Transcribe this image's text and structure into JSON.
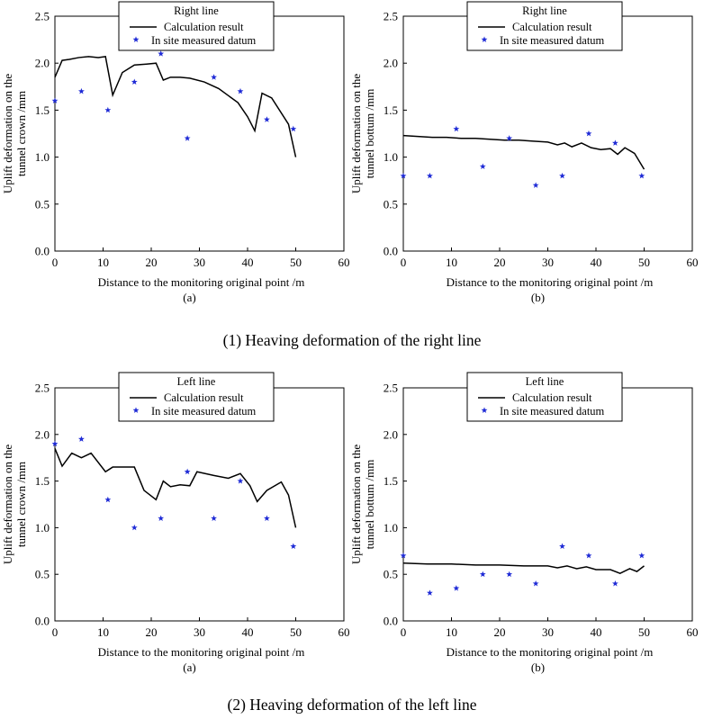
{
  "chart_data": [
    {
      "type": "line",
      "title": "Right line",
      "xlabel": "Distance to the monitoring original point /m",
      "ylabel": [
        "Uplift deformation on the",
        "tunnel crown /mm"
      ],
      "sublabel": "(a)",
      "xlim": [
        0,
        60
      ],
      "ylim": [
        0,
        2.5
      ],
      "xticks": [
        0,
        10,
        20,
        30,
        40,
        50,
        60
      ],
      "yticks": [
        0.0,
        0.5,
        1.0,
        1.5,
        2.0,
        2.5
      ],
      "ytick_labels": [
        "0.0",
        "0.5",
        "1.0",
        "1.5",
        "2.0",
        "2.5"
      ],
      "legend": {
        "title": "Right line",
        "line_label": "Calculation result",
        "marker_label": "In site measured datum"
      },
      "series": [
        {
          "name": "Calculation result",
          "kind": "line",
          "x": [
            0,
            1.5,
            3,
            5,
            7,
            9,
            10.5,
            12,
            14,
            16.5,
            19,
            21,
            22.5,
            24,
            26,
            28,
            31,
            34,
            38,
            40,
            41.5,
            43,
            45,
            48.5,
            50
          ],
          "y": [
            1.85,
            2.03,
            2.04,
            2.06,
            2.07,
            2.06,
            2.07,
            1.66,
            1.9,
            1.98,
            1.99,
            2.0,
            1.82,
            1.85,
            1.85,
            1.84,
            1.8,
            1.73,
            1.58,
            1.43,
            1.28,
            1.68,
            1.63,
            1.35,
            1.0
          ]
        },
        {
          "name": "In site measured datum",
          "kind": "scatter",
          "x": [
            0,
            5.5,
            11,
            16.5,
            22,
            27.5,
            33,
            38.5,
            44,
            49.5
          ],
          "y": [
            1.6,
            1.7,
            1.5,
            1.8,
            2.1,
            1.2,
            1.85,
            1.7,
            1.4,
            1.3
          ]
        }
      ]
    },
    {
      "type": "line",
      "title": "Right line",
      "xlabel": "Distance to the monitoring original point /m",
      "ylabel": [
        "Uplift deformation on the",
        "tunnel bottum /mm"
      ],
      "sublabel": "(b)",
      "xlim": [
        0,
        60
      ],
      "ylim": [
        0,
        2.5
      ],
      "xticks": [
        0,
        10,
        20,
        30,
        40,
        50,
        60
      ],
      "yticks": [
        0.0,
        0.5,
        1.0,
        1.5,
        2.0,
        2.5
      ],
      "ytick_labels": [
        "0.0",
        "0.5",
        "1.0",
        "1.5",
        "2.0",
        "2.5"
      ],
      "legend": {
        "title": "Right line",
        "line_label": "Calculation result",
        "marker_label": "In site measured datum"
      },
      "series": [
        {
          "name": "Calculation result",
          "kind": "line",
          "x": [
            0,
            3,
            6,
            9,
            12,
            15,
            18,
            21,
            24,
            27,
            30,
            32,
            33.5,
            35,
            37,
            39,
            41,
            43,
            44.5,
            46,
            48,
            50
          ],
          "y": [
            1.23,
            1.22,
            1.21,
            1.21,
            1.2,
            1.2,
            1.19,
            1.18,
            1.18,
            1.17,
            1.16,
            1.13,
            1.15,
            1.11,
            1.15,
            1.1,
            1.08,
            1.09,
            1.03,
            1.1,
            1.04,
            0.87
          ]
        },
        {
          "name": "In site measured datum",
          "kind": "scatter",
          "x": [
            0,
            5.5,
            11,
            16.5,
            22,
            27.5,
            33,
            38.5,
            44,
            49.5
          ],
          "y": [
            0.8,
            0.8,
            1.3,
            0.9,
            1.2,
            0.7,
            0.8,
            1.25,
            1.15,
            0.8
          ]
        }
      ]
    },
    {
      "type": "line",
      "title": "Left line",
      "xlabel": "Distance to the monitoring original point /m",
      "ylabel": [
        "Uplift deformation on the",
        "tunnel crown /mm"
      ],
      "sublabel": "(a)",
      "xlim": [
        0,
        60
      ],
      "ylim": [
        0,
        2.5
      ],
      "xticks": [
        0,
        10,
        20,
        30,
        40,
        50,
        60
      ],
      "yticks": [
        0.0,
        0.5,
        1.0,
        1.5,
        2.0,
        2.5
      ],
      "ytick_labels": [
        "0.0",
        "0.5",
        "1.0",
        "1.5",
        "2.0",
        "2.5"
      ],
      "legend": {
        "title": "Left line",
        "line_label": "Calculation result",
        "marker_label": "In site measured datum"
      },
      "series": [
        {
          "name": "Calculation result",
          "kind": "line",
          "x": [
            0,
            1.5,
            3.5,
            5.5,
            7.5,
            10.5,
            12,
            16.5,
            18.5,
            21,
            22.5,
            24,
            26,
            28,
            29.5,
            33,
            36,
            38.5,
            40.5,
            42,
            44,
            47,
            48.5,
            50
          ],
          "y": [
            1.85,
            1.66,
            1.8,
            1.75,
            1.8,
            1.6,
            1.65,
            1.65,
            1.4,
            1.3,
            1.5,
            1.44,
            1.46,
            1.45,
            1.6,
            1.56,
            1.53,
            1.58,
            1.45,
            1.28,
            1.4,
            1.49,
            1.35,
            1.0
          ]
        },
        {
          "name": "In site measured datum",
          "kind": "scatter",
          "x": [
            0,
            5.5,
            11,
            16.5,
            22,
            27.5,
            33,
            38.5,
            44,
            49.5
          ],
          "y": [
            1.9,
            1.95,
            1.3,
            1.0,
            1.1,
            1.6,
            1.1,
            1.5,
            1.1,
            0.8
          ]
        }
      ]
    },
    {
      "type": "line",
      "title": "Left line",
      "xlabel": "Distance to the monitoring original point /m",
      "ylabel": [
        "Uplift deformation on the",
        "tunnel bottum /mm"
      ],
      "sublabel": "(b)",
      "xlim": [
        0,
        60
      ],
      "ylim": [
        0,
        2.5
      ],
      "xticks": [
        0,
        10,
        20,
        30,
        40,
        50,
        60
      ],
      "yticks": [
        0.0,
        0.5,
        1.0,
        1.5,
        2.0,
        2.5
      ],
      "ytick_labels": [
        "0.0",
        "0.5",
        "1.0",
        "1.5",
        "2.0",
        "2.5"
      ],
      "legend": {
        "title": "Left line",
        "line_label": "Calculation result",
        "marker_label": "In site measured datum"
      },
      "series": [
        {
          "name": "Calculation result",
          "kind": "line",
          "x": [
            0,
            5,
            10,
            15,
            20,
            25,
            30,
            32,
            34,
            36,
            38,
            40,
            43,
            45,
            47,
            48.5,
            50
          ],
          "y": [
            0.62,
            0.61,
            0.61,
            0.6,
            0.6,
            0.59,
            0.59,
            0.57,
            0.59,
            0.56,
            0.58,
            0.55,
            0.55,
            0.51,
            0.56,
            0.53,
            0.59
          ]
        },
        {
          "name": "In site measured datum",
          "kind": "scatter",
          "x": [
            0,
            5.5,
            11,
            16.5,
            22,
            27.5,
            33,
            38.5,
            44,
            49.5
          ],
          "y": [
            0.7,
            0.3,
            0.35,
            0.5,
            0.5,
            0.4,
            0.8,
            0.7,
            0.4,
            0.7
          ]
        }
      ]
    }
  ],
  "captions": {
    "right_line": "(1) Heaving deformation of the right line",
    "left_line": "(2) Heaving deformation of the left line"
  },
  "colors": {
    "line": "#000000",
    "marker": "#1f2bd6",
    "axis": "#000000"
  }
}
